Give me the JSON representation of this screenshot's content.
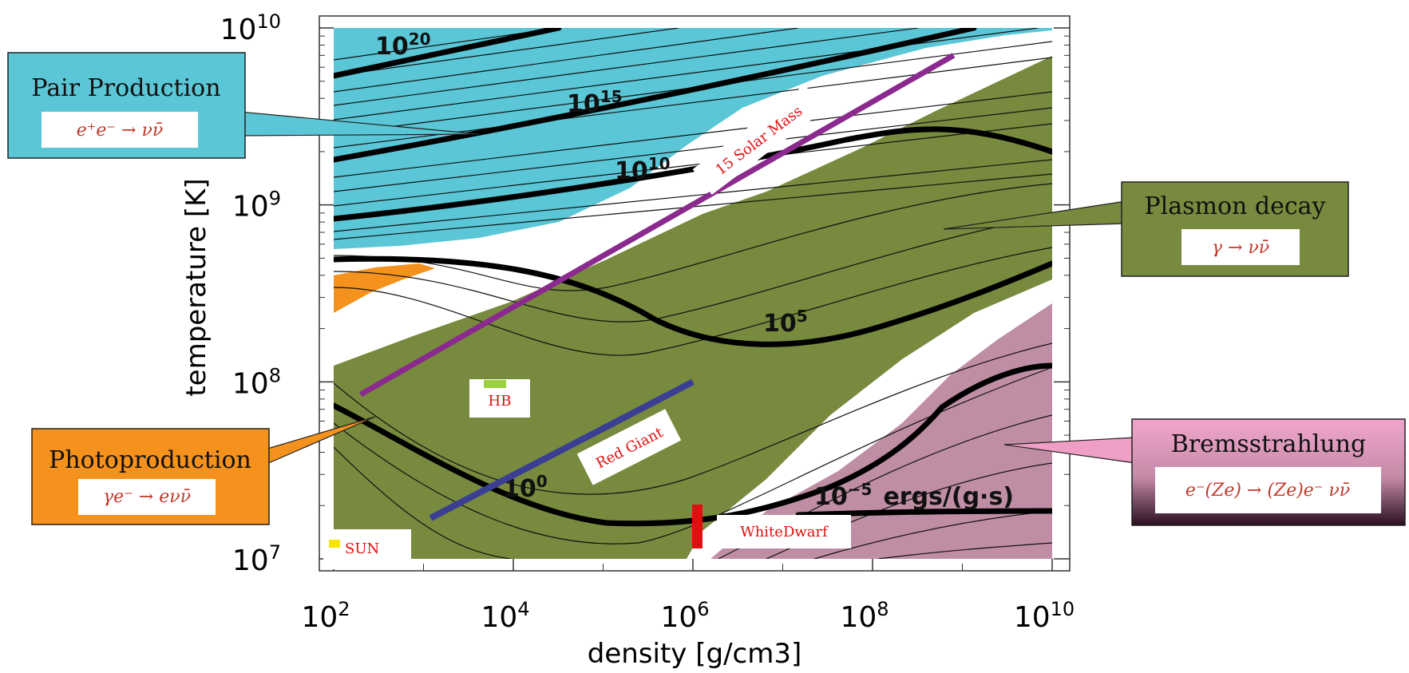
{
  "chart_data": {
    "type": "contour",
    "xlabel": "density [g/cm3]",
    "ylabel": "temperature [K]",
    "xscale": "log",
    "yscale": "log",
    "xlim": [
      100,
      10000000000
    ],
    "ylim": [
      10000000,
      10000000000
    ],
    "x_ticks": [
      {
        "value": 100,
        "base": "10",
        "exp": "2"
      },
      {
        "value": 10000,
        "base": "10",
        "exp": "4"
      },
      {
        "value": 1000000,
        "base": "10",
        "exp": "6"
      },
      {
        "value": 100000000,
        "base": "10",
        "exp": "8"
      },
      {
        "value": 10000000000,
        "base": "10",
        "exp": "10"
      }
    ],
    "y_ticks": [
      {
        "value": 10000000,
        "base": "10",
        "exp": "7"
      },
      {
        "value": 100000000,
        "base": "10",
        "exp": "8"
      },
      {
        "value": 1000000000,
        "base": "10",
        "exp": "9"
      },
      {
        "value": 10000000000,
        "base": "10",
        "exp": "10"
      }
    ],
    "regions": [
      {
        "name": "Pair Production",
        "formula": "e⁺e⁻ → νν̄",
        "color": "#5bc6d6"
      },
      {
        "name": "Plasmon decay",
        "formula": "γ → νν̄",
        "color": "#778a3e"
      },
      {
        "name": "Photoproduction",
        "formula": "γe⁻ → eνν̄",
        "color": "#f5921e"
      },
      {
        "name": "Bremsstrahlung",
        "formula": "e⁻(Ze) → (Ze)e⁻ νν̄",
        "color": "#c08ea4"
      }
    ],
    "contour_labels": [
      {
        "base": "10",
        "exp": "20",
        "unit": ""
      },
      {
        "base": "10",
        "exp": "15",
        "unit": ""
      },
      {
        "base": "10",
        "exp": "10",
        "unit": ""
      },
      {
        "base": "10",
        "exp": "5",
        "unit": ""
      },
      {
        "base": "10",
        "exp": "0",
        "unit": ""
      },
      {
        "base": "10",
        "exp": "−5",
        "unit": "ergs/(g·s)"
      }
    ],
    "tracks": [
      {
        "label": "15 Solar Mass",
        "color": "#8b2a8e",
        "x": [
          200,
          800000000
        ],
        "y": [
          85000000,
          7000000000
        ]
      },
      {
        "label": "Red Giant",
        "color": "#3a3f94",
        "x": [
          1200,
          1000000
        ],
        "y": [
          17000000,
          100000000
        ]
      }
    ],
    "markers": [
      {
        "label": "SUN",
        "color": "#f5e500"
      },
      {
        "label": "HB",
        "color": "#9ad13c"
      },
      {
        "label": "WhiteDwarf",
        "color": "#e01010"
      }
    ]
  }
}
